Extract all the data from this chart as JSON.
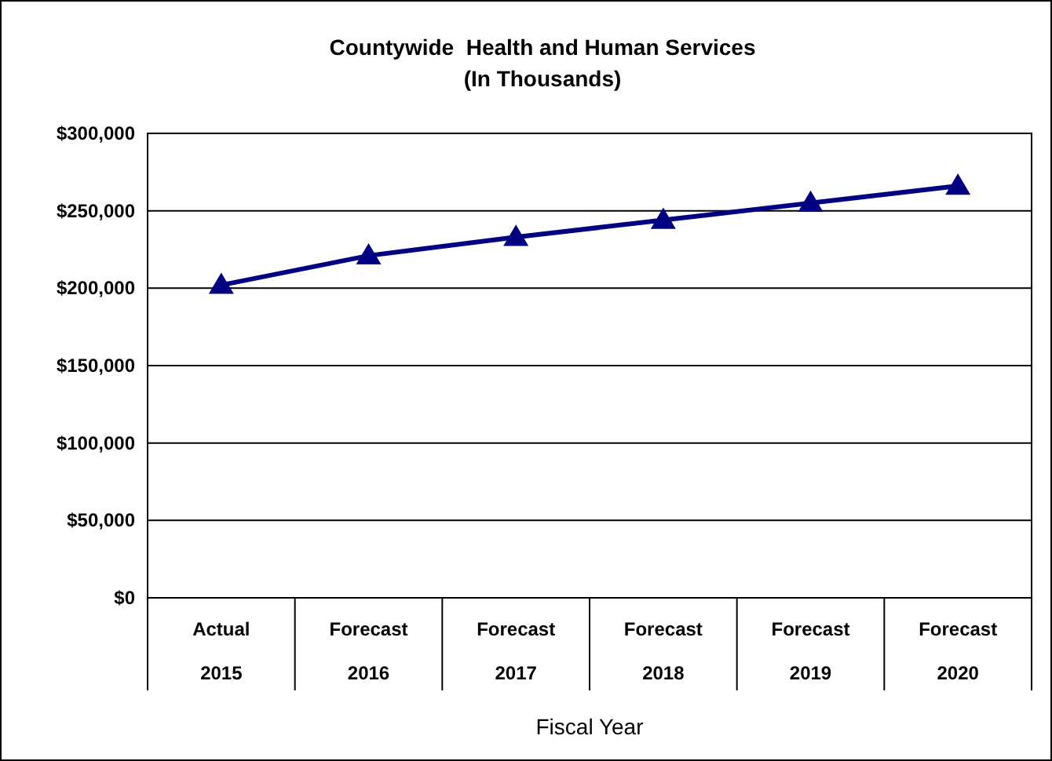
{
  "chart_data": {
    "type": "line",
    "title": "Countywide  Health and Human Services",
    "subtitle": "(In Thousands)",
    "xlabel": "Fiscal Year",
    "categories": [
      "Actual\n2015",
      "Forecast\n2016",
      "Forecast\n2017",
      "Forecast\n2018",
      "Forecast\n2019",
      "Forecast\n2020"
    ],
    "series": [
      {
        "color": "#000080",
        "values": [
          202000,
          221000,
          233000,
          244000,
          255000,
          266000
        ]
      }
    ],
    "ylim": [
      0,
      300000
    ],
    "yticks": [
      {
        "value": 0,
        "label": "$0"
      },
      {
        "value": 50000,
        "label": "$50,000"
      },
      {
        "value": 100000,
        "label": "$100,000"
      },
      {
        "value": 150000,
        "label": "$150,000"
      },
      {
        "value": 200000,
        "label": "$200,000"
      },
      {
        "value": 250000,
        "label": "$250,000"
      },
      {
        "value": 300000,
        "label": "$300,000"
      }
    ],
    "grid": "y",
    "marker": "triangle",
    "line_style": "solid"
  }
}
